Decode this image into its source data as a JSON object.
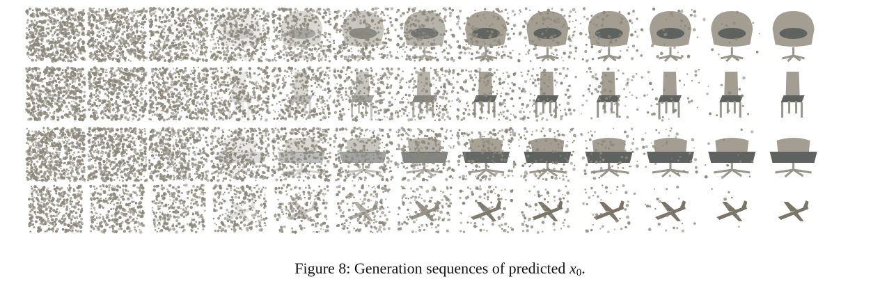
{
  "figure": {
    "columns": 13,
    "row_objects": [
      "armchair",
      "chair",
      "office-chair",
      "airplane"
    ],
    "point_color": "#8c877b",
    "surface_color": "#a39d92",
    "seat_color": "#5e6360",
    "object_color_airplane": "#7a7568"
  },
  "caption": {
    "label": "Figure 8: Generation sequences of predicted ",
    "var": "x",
    "sub": "0",
    "end": "."
  }
}
